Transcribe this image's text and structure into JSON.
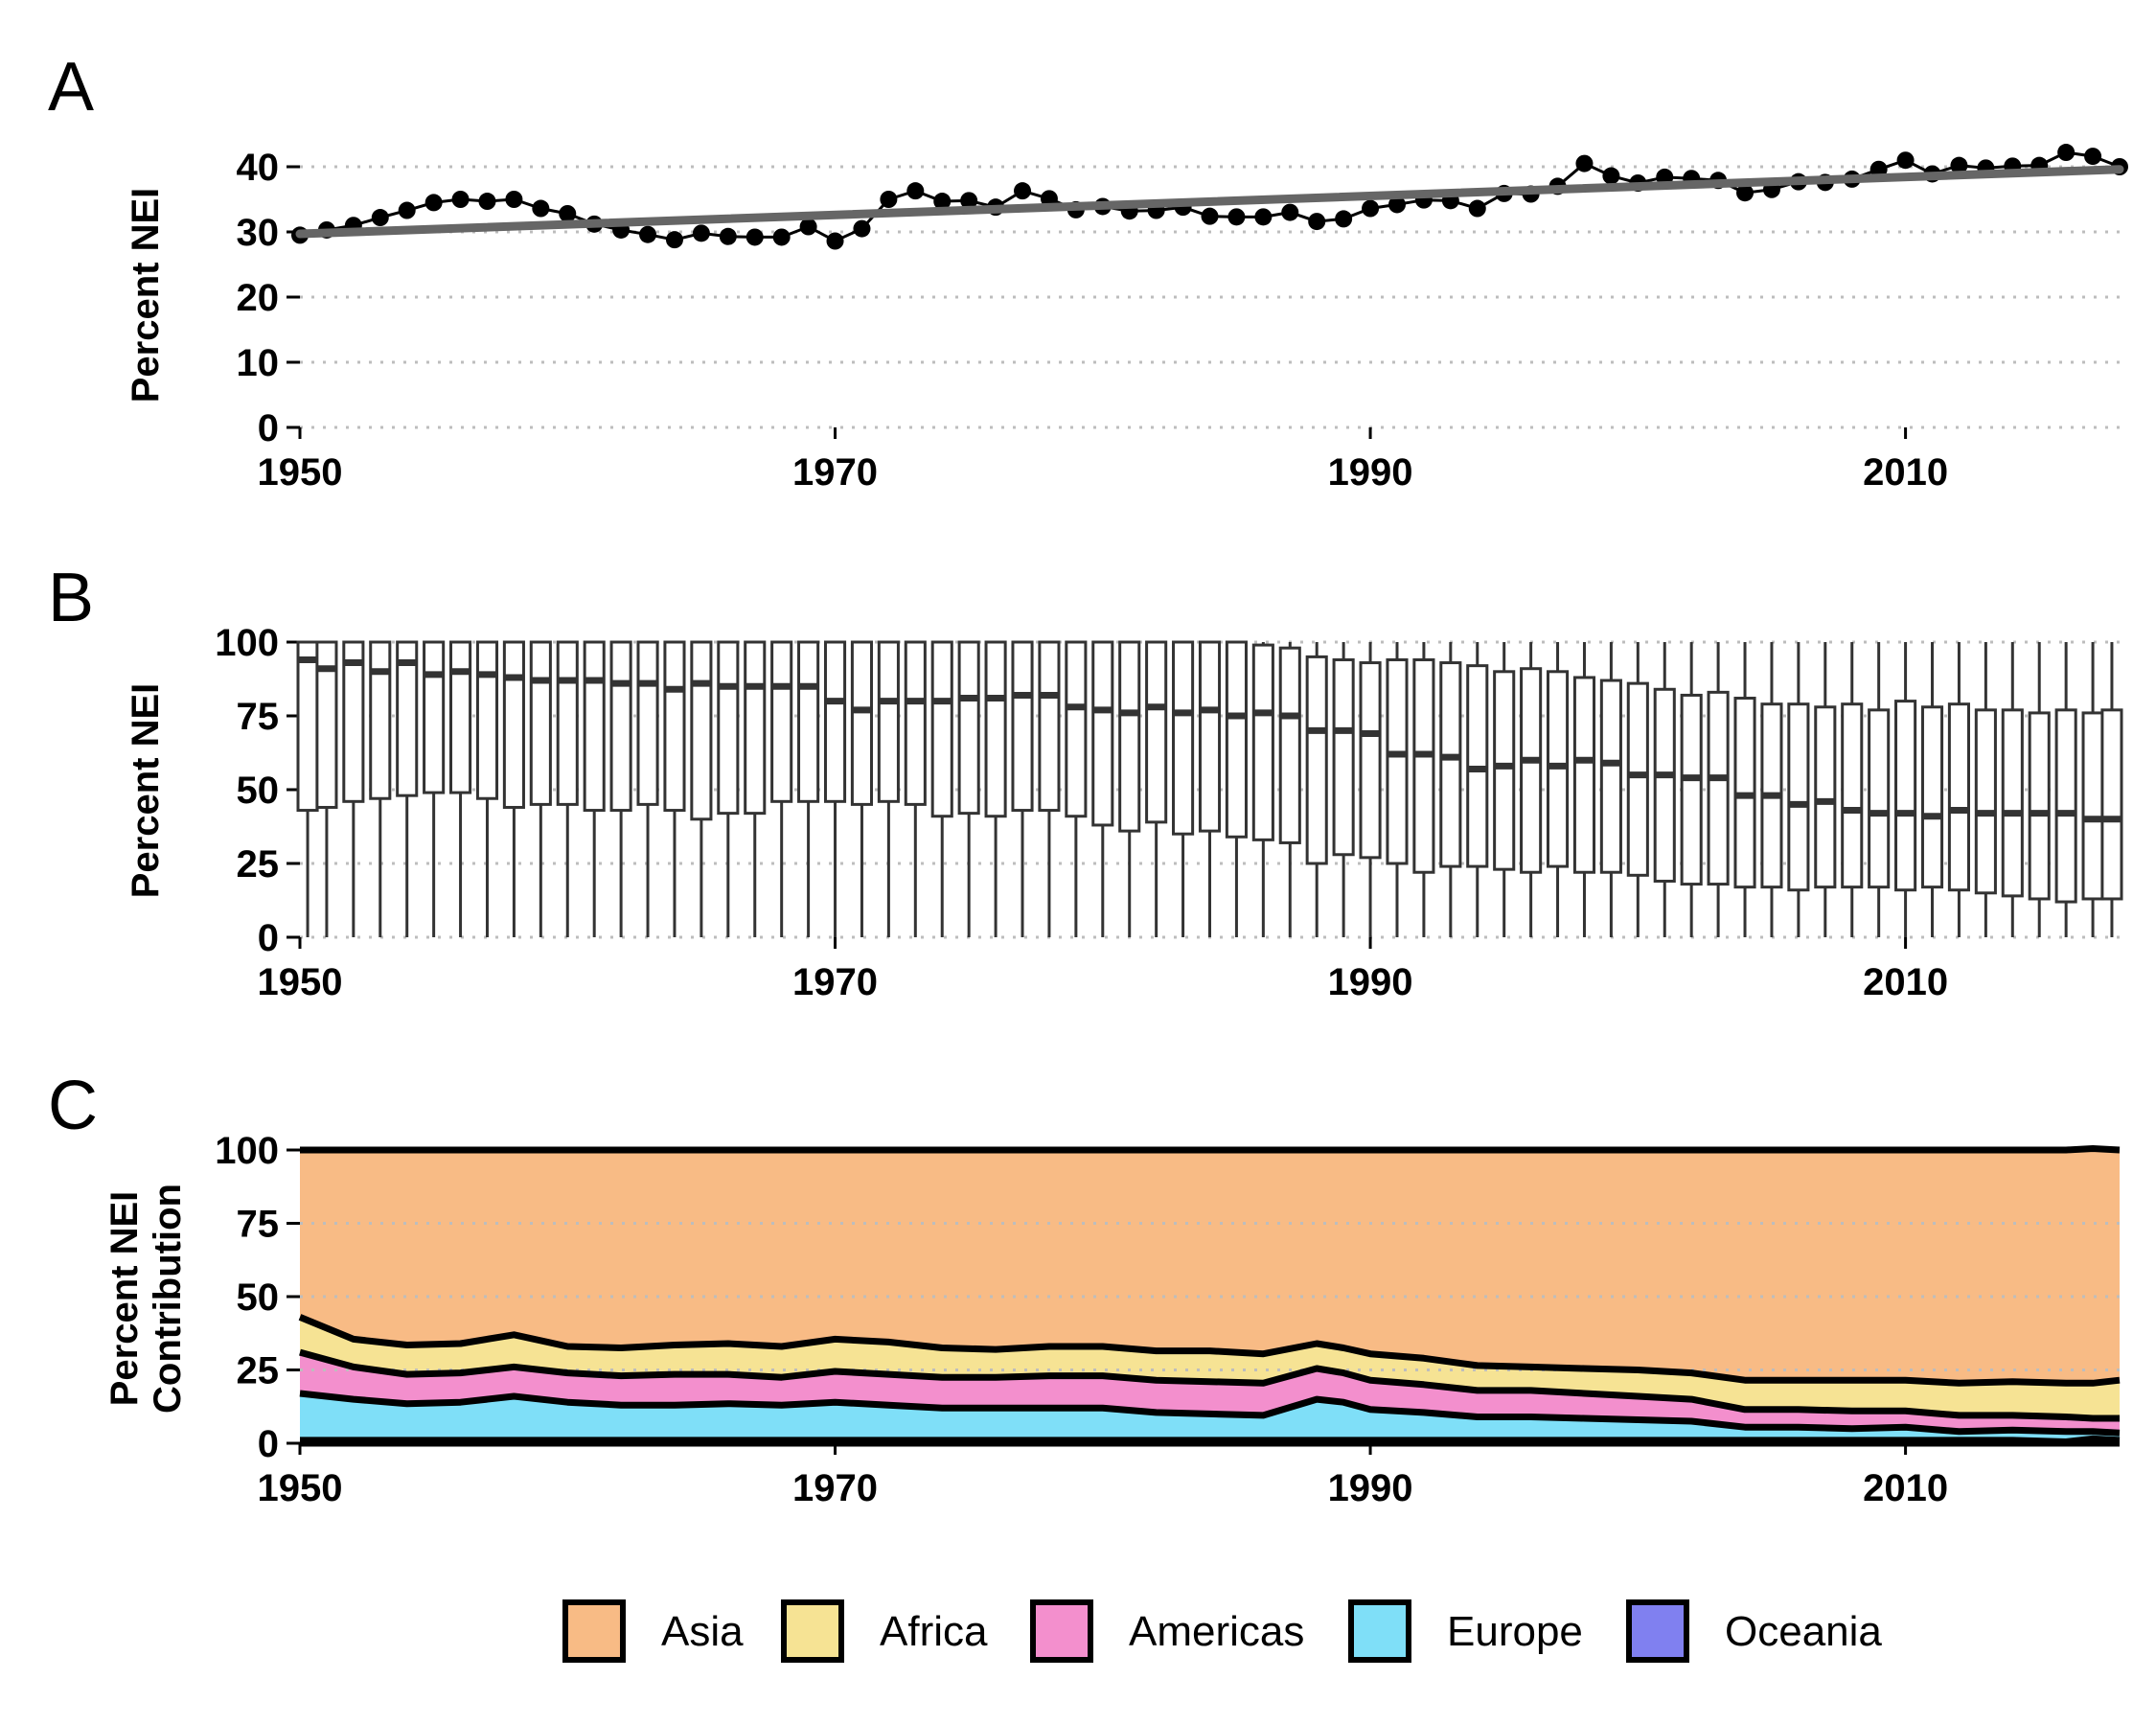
{
  "legend": {
    "items": [
      {
        "label": "Asia",
        "color": "#f8bb85"
      },
      {
        "label": "Africa",
        "color": "#f6e394"
      },
      {
        "label": "Americas",
        "color": "#f38fcd"
      },
      {
        "label": "Europe",
        "color": "#7fdff8"
      },
      {
        "label": "Oceania",
        "color": "#8080f0"
      }
    ]
  },
  "chart_data": [
    {
      "panel": "A",
      "type": "line",
      "ylabel": "Percent NEI",
      "xlabel": "",
      "xlim": [
        1950,
        2018
      ],
      "ylim": [
        0,
        45
      ],
      "x_ticks": [
        1950,
        1970,
        1990,
        2010
      ],
      "y_ticks": [
        0,
        10,
        20,
        30,
        40
      ],
      "grid": "horizontal dotted",
      "x": [
        1950,
        1951,
        1952,
        1953,
        1954,
        1955,
        1956,
        1957,
        1958,
        1959,
        1960,
        1961,
        1962,
        1963,
        1964,
        1965,
        1966,
        1967,
        1968,
        1969,
        1970,
        1971,
        1972,
        1973,
        1974,
        1975,
        1976,
        1977,
        1978,
        1979,
        1980,
        1981,
        1982,
        1983,
        1984,
        1985,
        1986,
        1987,
        1988,
        1989,
        1990,
        1991,
        1992,
        1993,
        1994,
        1995,
        1996,
        1997,
        1998,
        1999,
        2000,
        2001,
        2002,
        2003,
        2004,
        2005,
        2006,
        2007,
        2008,
        2009,
        2010,
        2011,
        2012,
        2013,
        2014,
        2015,
        2016,
        2017,
        2018
      ],
      "y": [
        29.5,
        30.3,
        31.0,
        32.2,
        33.3,
        34.5,
        35.0,
        34.7,
        35.0,
        33.6,
        32.8,
        31.2,
        30.3,
        29.6,
        28.8,
        29.8,
        29.3,
        29.2,
        29.2,
        30.8,
        28.6,
        30.5,
        35.0,
        36.3,
        34.7,
        34.8,
        33.8,
        36.3,
        35.1,
        33.4,
        33.9,
        33.2,
        33.3,
        33.8,
        32.4,
        32.3,
        32.3,
        33.0,
        31.6,
        32.0,
        33.6,
        34.2,
        34.9,
        34.8,
        33.6,
        35.9,
        35.8,
        37.0,
        40.5,
        38.6,
        37.5,
        38.4,
        38.2,
        37.9,
        36.0,
        36.5,
        37.7,
        37.6,
        38.1,
        39.6,
        41.0,
        38.9,
        40.2,
        39.8,
        40.1,
        40.2,
        42.2,
        41.6,
        40.0
      ],
      "trend": {
        "x": [
          1950,
          2018
        ],
        "y": [
          29.7,
          39.6
        ]
      }
    },
    {
      "panel": "B",
      "type": "box",
      "ylabel": "Percent NEI",
      "xlabel": "",
      "xlim": [
        1950,
        2018
      ],
      "ylim": [
        0,
        100
      ],
      "x_ticks": [
        1950,
        1970,
        1990,
        2010
      ],
      "y_ticks": [
        0,
        25,
        50,
        75,
        100
      ],
      "grid": "horizontal dotted",
      "x": [
        1950,
        1951,
        1952,
        1953,
        1954,
        1955,
        1956,
        1957,
        1958,
        1959,
        1960,
        1961,
        1962,
        1963,
        1964,
        1965,
        1966,
        1967,
        1968,
        1969,
        1970,
        1971,
        1972,
        1973,
        1974,
        1975,
        1976,
        1977,
        1978,
        1979,
        1980,
        1981,
        1982,
        1983,
        1984,
        1985,
        1986,
        1987,
        1988,
        1989,
        1990,
        1991,
        1992,
        1993,
        1994,
        1995,
        1996,
        1997,
        1998,
        1999,
        2000,
        2001,
        2002,
        2003,
        2004,
        2005,
        2006,
        2007,
        2008,
        2009,
        2010,
        2011,
        2012,
        2013,
        2014,
        2015,
        2016,
        2017,
        2018
      ],
      "median": [
        94,
        91,
        93,
        90,
        93,
        89,
        90,
        89,
        88,
        87,
        87,
        87,
        86,
        86,
        84,
        86,
        85,
        85,
        85,
        85,
        80,
        77,
        80,
        80,
        80,
        81,
        81,
        82,
        82,
        78,
        77,
        76,
        78,
        76,
        77,
        75,
        76,
        75,
        70,
        70,
        69,
        62,
        62,
        61,
        57,
        58,
        60,
        58,
        60,
        59,
        55,
        55,
        54,
        54,
        48,
        48,
        45,
        46,
        43,
        42,
        42,
        41,
        43,
        42,
        42,
        42,
        42,
        40,
        40
      ],
      "q1": [
        43,
        44,
        46,
        47,
        48,
        49,
        49,
        47,
        44,
        45,
        45,
        43,
        43,
        45,
        43,
        40,
        42,
        42,
        46,
        46,
        46,
        45,
        46,
        45,
        41,
        42,
        41,
        43,
        43,
        41,
        38,
        36,
        39,
        35,
        36,
        34,
        33,
        32,
        25,
        28,
        27,
        25,
        22,
        24,
        24,
        23,
        22,
        24,
        22,
        22,
        21,
        19,
        18,
        18,
        17,
        17,
        16,
        17,
        17,
        17,
        16,
        17,
        16,
        15,
        14,
        13,
        12,
        13,
        13
      ],
      "q3": [
        100,
        100,
        100,
        100,
        100,
        100,
        100,
        100,
        100,
        100,
        100,
        100,
        100,
        100,
        100,
        100,
        100,
        100,
        100,
        100,
        100,
        100,
        100,
        100,
        100,
        100,
        100,
        100,
        100,
        100,
        100,
        100,
        100,
        100,
        100,
        100,
        99,
        98,
        95,
        94,
        93,
        94,
        94,
        93,
        92,
        90,
        91,
        90,
        88,
        87,
        86,
        84,
        82,
        83,
        81,
        79,
        79,
        78,
        79,
        77,
        80,
        78,
        79,
        77,
        77,
        76,
        77,
        76,
        77
      ],
      "min": [
        0,
        0,
        0,
        0,
        0,
        0,
        0,
        0,
        0,
        0,
        0,
        0,
        0,
        0,
        0,
        0,
        0,
        0,
        0,
        0,
        0,
        0,
        0,
        0,
        0,
        0,
        0,
        0,
        0,
        0,
        0,
        0,
        0,
        0,
        0,
        0,
        0,
        0,
        0,
        0,
        0,
        0,
        0,
        0,
        0,
        0,
        0,
        0,
        0,
        0,
        0,
        0,
        0,
        0,
        0,
        0,
        0,
        0,
        0,
        0,
        0,
        0,
        0,
        0,
        0,
        0,
        0,
        0,
        0
      ],
      "max": [
        100,
        100,
        100,
        100,
        100,
        100,
        100,
        100,
        100,
        100,
        100,
        100,
        100,
        100,
        100,
        100,
        100,
        100,
        100,
        100,
        100,
        100,
        100,
        100,
        100,
        100,
        100,
        100,
        100,
        100,
        100,
        100,
        100,
        100,
        100,
        100,
        100,
        100,
        100,
        100,
        100,
        100,
        100,
        100,
        100,
        100,
        100,
        100,
        100,
        100,
        100,
        100,
        100,
        100,
        100,
        100,
        100,
        100,
        100,
        100,
        100,
        100,
        100,
        100,
        100,
        100,
        100,
        100,
        100
      ]
    },
    {
      "panel": "C",
      "type": "area",
      "stacked": true,
      "ylabel": "Percent NEI Contribution",
      "ylabel_lines": [
        "Percent NEI",
        "Contribution"
      ],
      "xlabel": "",
      "xlim": [
        1950,
        2018
      ],
      "ylim": [
        0,
        100
      ],
      "x_ticks": [
        1950,
        1970,
        1990,
        2010
      ],
      "y_ticks": [
        0,
        25,
        50,
        75,
        100
      ],
      "grid": "horizontal dotted",
      "legend_position": "bottom",
      "x": [
        1950,
        1952,
        1954,
        1956,
        1958,
        1960,
        1962,
        1964,
        1966,
        1968,
        1970,
        1972,
        1974,
        1976,
        1978,
        1980,
        1982,
        1984,
        1986,
        1988,
        1989,
        1990,
        1992,
        1994,
        1996,
        1998,
        2000,
        2002,
        2004,
        2006,
        2008,
        2010,
        2012,
        2014,
        2016,
        2017,
        2018
      ],
      "series": [
        {
          "name": "Oceania",
          "values": [
            1,
            1,
            1,
            1,
            1,
            1,
            1,
            1,
            1,
            1,
            1,
            1,
            1,
            1,
            1,
            1,
            1,
            1,
            1,
            1,
            1,
            1,
            1,
            1,
            1,
            1,
            1,
            1,
            1,
            1,
            1,
            1,
            1,
            1,
            0.5,
            1.5,
            1
          ]
        },
        {
          "name": "Europe",
          "values": [
            16,
            14,
            12.5,
            13,
            15,
            13,
            12,
            12,
            12.5,
            12,
            13,
            12,
            11,
            11,
            11,
            11,
            9.5,
            9,
            8.5,
            14,
            13,
            10.5,
            9.5,
            8,
            8,
            7.5,
            7,
            6.5,
            4.5,
            4.5,
            4,
            4.5,
            3,
            3.5,
            3.5,
            2.5,
            2.5
          ]
        },
        {
          "name": "Americas",
          "values": [
            14,
            11,
            10,
            10,
            10,
            10,
            10,
            10.5,
            10,
            9.5,
            10.5,
            10.5,
            10.5,
            10.5,
            11,
            11,
            11,
            11,
            11,
            10.5,
            10,
            10,
            9.5,
            9,
            9,
            8.5,
            8,
            7.5,
            6,
            6,
            6,
            5.5,
            5.5,
            5,
            5,
            4.5,
            5
          ]
        },
        {
          "name": "Africa",
          "values": [
            12,
            9.5,
            10,
            10,
            11,
            9,
            9.5,
            10,
            10.5,
            10.5,
            11,
            11,
            10,
            9.5,
            10,
            10,
            10,
            10.5,
            10,
            8.5,
            8.5,
            9,
            9,
            8.5,
            8,
            8.5,
            9,
            9,
            10,
            10,
            10.5,
            10.5,
            11,
            11.5,
            11.5,
            12,
            13
          ]
        },
        {
          "name": "Asia",
          "values": [
            57,
            64.5,
            66.5,
            66,
            63,
            67,
            67.5,
            66.5,
            66,
            67,
            64.5,
            65.5,
            67.5,
            68,
            67,
            67,
            68.5,
            68.5,
            69.5,
            66,
            67.5,
            69.5,
            71,
            73.5,
            74,
            74.5,
            75,
            76,
            78.5,
            78.5,
            78.5,
            78.5,
            79.5,
            79,
            79.5,
            80,
            78.5
          ]
        }
      ]
    }
  ]
}
